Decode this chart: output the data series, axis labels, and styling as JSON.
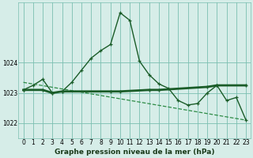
{
  "title": "Graphe pression niveau de la mer (hPa)",
  "bg_color": "#d6ede8",
  "grid_color": "#7bbfb0",
  "line_color": "#1a5c28",
  "trend_color": "#2d8b45",
  "xlim": [
    -0.5,
    23.5
  ],
  "ylim": [
    1021.5,
    1026.0
  ],
  "yticks": [
    1022,
    1023,
    1024
  ],
  "xticks": [
    0,
    1,
    2,
    3,
    4,
    5,
    6,
    7,
    8,
    9,
    10,
    11,
    12,
    13,
    14,
    15,
    16,
    17,
    18,
    19,
    20,
    21,
    22,
    23
  ],
  "series1_x": [
    0,
    1,
    2,
    3,
    4,
    5,
    6,
    7,
    8,
    9,
    10,
    11,
    12,
    13,
    14,
    15,
    16,
    17,
    18,
    19,
    20,
    21,
    22,
    23
  ],
  "series1_y": [
    1023.1,
    1023.25,
    1023.45,
    1023.0,
    1023.05,
    1023.35,
    1023.75,
    1024.15,
    1024.4,
    1024.6,
    1025.65,
    1025.4,
    1024.05,
    1023.6,
    1023.3,
    1023.15,
    1022.75,
    1022.6,
    1022.65,
    1023.0,
    1023.25,
    1022.75,
    1022.85,
    1022.1
  ],
  "series2_x": [
    0,
    2,
    3,
    4,
    9,
    10,
    13,
    14,
    19,
    20,
    23
  ],
  "series2_y": [
    1023.1,
    1023.1,
    1023.0,
    1023.05,
    1023.05,
    1023.05,
    1023.1,
    1023.1,
    1023.2,
    1023.25,
    1023.25
  ],
  "trend_x": [
    0,
    23
  ],
  "trend_y": [
    1023.35,
    1022.1
  ],
  "ylabel_fontsize": 6.5,
  "tick_fontsize": 5.5
}
